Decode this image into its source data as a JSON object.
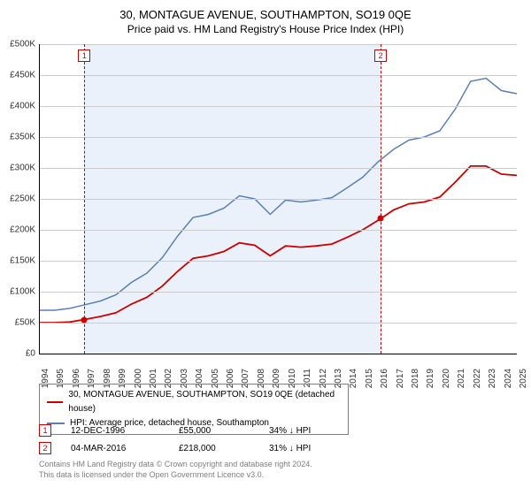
{
  "title": "30, MONTAGUE AVENUE, SOUTHAMPTON, SO19 0QE",
  "subtitle": "Price paid vs. HM Land Registry's House Price Index (HPI)",
  "chart": {
    "type": "line",
    "background_color": "#ffffff",
    "grid_color": "#cccccc",
    "axis_color": "#000000",
    "text_color": "#333333",
    "font_size_axis": 10,
    "font_size_title": 13,
    "y": {
      "min": 0,
      "max": 500000,
      "step": 50000,
      "prefix": "£",
      "suffix": "K",
      "divisor": 1000
    },
    "x": {
      "min": 1994,
      "max": 2025,
      "step": 1
    },
    "band": {
      "from": 1996.95,
      "to": 2016.17,
      "fill": "#eaf1fa"
    },
    "markers": [
      {
        "label": "1",
        "x": 1996.95,
        "line_color": "#cc0000",
        "box_border": "#cc0000",
        "text_color": "#cc0000"
      },
      {
        "label": "2",
        "x": 2016.17,
        "line_color": "#cc0000",
        "box_border": "#cc0000",
        "text_color": "#cc0000"
      }
    ],
    "series": [
      {
        "name": "HPI",
        "color": "#5b7fb5",
        "width": 1.5,
        "legend": "HPI: Average price, detached house, Southampton",
        "data": [
          [
            1994,
            70000
          ],
          [
            1995,
            70000
          ],
          [
            1996,
            73000
          ],
          [
            1997,
            79000
          ],
          [
            1998,
            85000
          ],
          [
            1999,
            95000
          ],
          [
            2000,
            115000
          ],
          [
            2001,
            130000
          ],
          [
            2002,
            155000
          ],
          [
            2003,
            190000
          ],
          [
            2004,
            220000
          ],
          [
            2005,
            225000
          ],
          [
            2006,
            235000
          ],
          [
            2007,
            255000
          ],
          [
            2008,
            250000
          ],
          [
            2009,
            225000
          ],
          [
            2010,
            248000
          ],
          [
            2011,
            245000
          ],
          [
            2012,
            248000
          ],
          [
            2013,
            252000
          ],
          [
            2014,
            268000
          ],
          [
            2015,
            285000
          ],
          [
            2016,
            310000
          ],
          [
            2017,
            330000
          ],
          [
            2018,
            345000
          ],
          [
            2019,
            350000
          ],
          [
            2020,
            360000
          ],
          [
            2021,
            395000
          ],
          [
            2022,
            440000
          ],
          [
            2023,
            445000
          ],
          [
            2024,
            425000
          ],
          [
            2025,
            420000
          ]
        ]
      },
      {
        "name": "Property",
        "color": "#cc0000",
        "width": 1.8,
        "legend": "30, MONTAGUE AVENUE, SOUTHAMPTON, SO19 0QE (detached house)",
        "data": [
          [
            1994,
            50000
          ],
          [
            1995,
            50000
          ],
          [
            1996,
            51000
          ],
          [
            1996.95,
            55000
          ],
          [
            1998,
            60000
          ],
          [
            1999,
            66000
          ],
          [
            2000,
            80000
          ],
          [
            2001,
            91000
          ],
          [
            2002,
            109000
          ],
          [
            2003,
            133000
          ],
          [
            2004,
            154000
          ],
          [
            2005,
            158000
          ],
          [
            2006,
            165000
          ],
          [
            2007,
            179000
          ],
          [
            2008,
            175000
          ],
          [
            2009,
            158000
          ],
          [
            2010,
            174000
          ],
          [
            2011,
            172000
          ],
          [
            2012,
            174000
          ],
          [
            2013,
            177000
          ],
          [
            2014,
            188000
          ],
          [
            2015,
            200000
          ],
          [
            2016.17,
            218000
          ],
          [
            2017,
            232000
          ],
          [
            2018,
            242000
          ],
          [
            2019,
            245000
          ],
          [
            2020,
            253000
          ],
          [
            2021,
            277000
          ],
          [
            2022,
            303000
          ],
          [
            2023,
            303000
          ],
          [
            2024,
            290000
          ],
          [
            2025,
            288000
          ]
        ],
        "points": [
          {
            "x": 1996.95,
            "y": 55000
          },
          {
            "x": 2016.17,
            "y": 218000
          }
        ]
      }
    ]
  },
  "legend_box_border": "#808080",
  "transactions": [
    {
      "idx": "1",
      "date": "12-DEC-1996",
      "price": "£55,000",
      "diff": "34% ↓ HPI",
      "box_border": "#cc0000",
      "text_color": "#cc0000"
    },
    {
      "idx": "2",
      "date": "04-MAR-2016",
      "price": "£218,000",
      "diff": "31% ↓ HPI",
      "box_border": "#cc0000",
      "text_color": "#cc0000"
    }
  ],
  "footer": {
    "line1": "Contains HM Land Registry data © Crown copyright and database right 2024.",
    "line2": "This data is licensed under the Open Government Licence v3.0."
  }
}
